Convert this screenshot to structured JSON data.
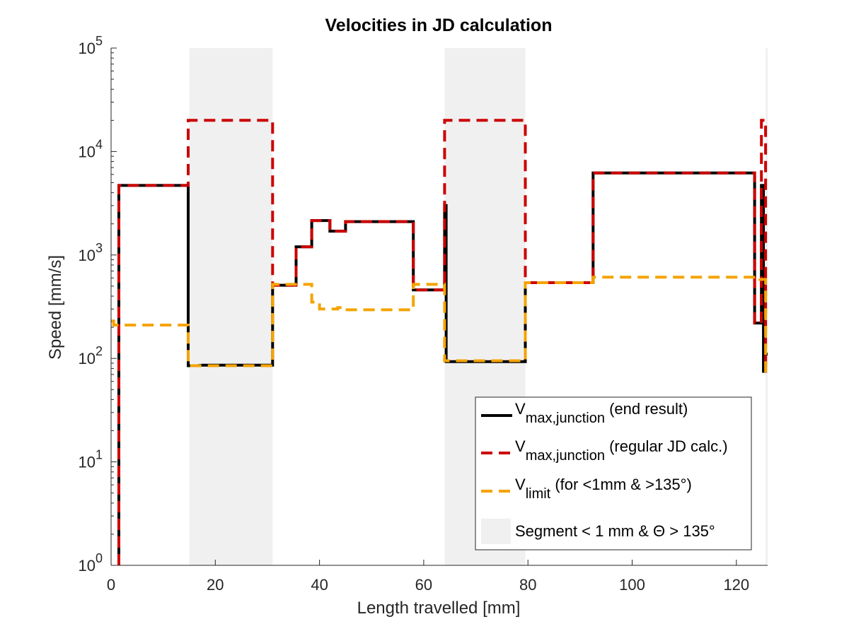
{
  "chart_data": {
    "type": "line",
    "title": "Velocities in JD calculation",
    "xlabel": "Length travelled [mm]",
    "ylabel": "Speed [mm/s]",
    "xlim": [
      0,
      126
    ],
    "ylim": [
      1,
      100000
    ],
    "yscale": "log",
    "grid": false,
    "legend_position": "bottom-right",
    "xticks": [
      0,
      20,
      40,
      60,
      80,
      100,
      120
    ],
    "yticks": [
      {
        "value": 1,
        "base": "10",
        "exp": "0"
      },
      {
        "value": 10,
        "base": "10",
        "exp": "1"
      },
      {
        "value": 100,
        "base": "10",
        "exp": "2"
      },
      {
        "value": 1000,
        "base": "10",
        "exp": "3"
      },
      {
        "value": 10000,
        "base": "10",
        "exp": "4"
      },
      {
        "value": 100000,
        "base": "10",
        "exp": "5"
      }
    ],
    "shaded_regions": [
      {
        "x0": 15,
        "x1": 31
      },
      {
        "x0": 64,
        "x1": 79.5
      },
      {
        "x0": 125.6,
        "x1": 126
      }
    ],
    "series": [
      {
        "key": "end_result",
        "color": "#000000",
        "dash": "solid",
        "legend_main": "V",
        "legend_sub": "max,junction",
        "legend_rest": " (end result)",
        "x": [
          1.5,
          1.5,
          14.8,
          14.8,
          16.5,
          17.5,
          31,
          31,
          35.5,
          35.5,
          38.5,
          38.5,
          42,
          42,
          45,
          45,
          58,
          58,
          64,
          64,
          64.3,
          64.3,
          79.5,
          79.5,
          92.5,
          92.5,
          123.5,
          123.5,
          124.8,
          124.8,
          125.2,
          125.2,
          125.6,
          125.6,
          126
        ],
        "y": [
          1,
          4700,
          4700,
          85,
          85,
          86,
          86,
          510,
          510,
          1200,
          1200,
          2150,
          2150,
          1700,
          1700,
          2100,
          2100,
          460,
          460,
          3000,
          3000,
          93,
          93,
          540,
          540,
          6200,
          6200,
          220,
          220,
          4700,
          4700,
          75,
          75,
          110,
          110
        ]
      },
      {
        "key": "regular_jd",
        "color": "#cc0000",
        "dash": "dashed",
        "legend_main": "V",
        "legend_sub": "max,junction",
        "legend_rest": " (regular JD calc.)",
        "x": [
          1.5,
          1.5,
          14.8,
          14.8,
          31,
          31,
          35.5,
          35.5,
          38.5,
          38.5,
          42,
          42,
          45,
          45,
          58,
          58,
          64,
          64,
          79.5,
          79.5,
          92.5,
          92.5,
          123.5,
          123.5,
          124.8,
          124.8,
          125.6,
          125.6,
          126
        ],
        "y": [
          1,
          4700,
          4700,
          20000,
          20000,
          510,
          510,
          1200,
          1200,
          2150,
          2150,
          1700,
          1700,
          2100,
          2100,
          460,
          460,
          20000,
          20000,
          540,
          540,
          6200,
          6200,
          220,
          220,
          20000,
          20000,
          80,
          80
        ]
      },
      {
        "key": "limit",
        "color": "#f5a300",
        "dash": "dashed",
        "legend_main": "V",
        "legend_sub": "limit",
        "legend_rest": " (for <1mm & >135°)",
        "x": [
          0,
          0.5,
          0.5,
          14.8,
          14.8,
          31,
          31,
          35.5,
          35.5,
          38.5,
          38.5,
          40,
          40,
          43.5,
          43.5,
          45,
          45,
          58,
          58,
          64,
          64,
          79.5,
          79.5,
          92.5,
          92.5,
          124.5,
          124.5,
          125.6,
          125.6,
          126
        ],
        "y": [
          230,
          230,
          210,
          210,
          85,
          85,
          520,
          520,
          520,
          520,
          350,
          350,
          300,
          300,
          310,
          310,
          295,
          295,
          520,
          520,
          95,
          95,
          540,
          540,
          610,
          610,
          580,
          580,
          70,
          70
        ]
      }
    ],
    "legend_shade": {
      "color": "#f0f0f0",
      "label": "Segment < 1 mm & Θ > 135°"
    }
  }
}
